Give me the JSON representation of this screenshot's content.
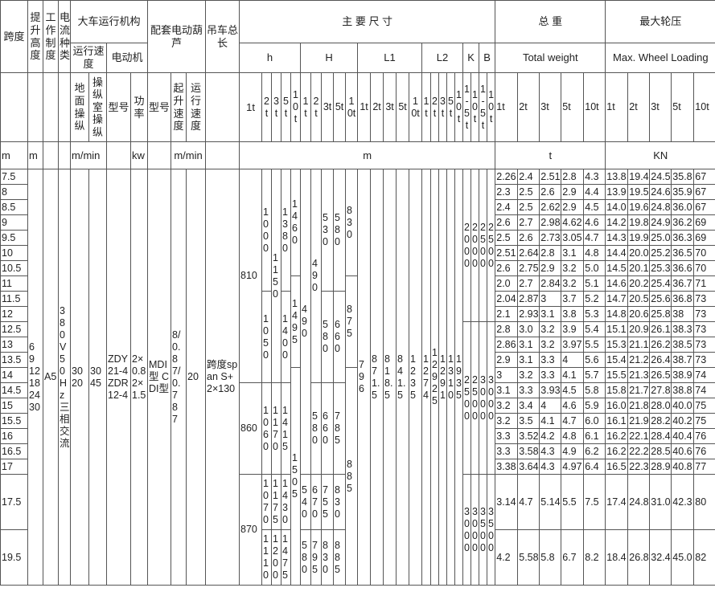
{
  "header": {
    "span": "跨度",
    "lift_height": "提升高度",
    "duty": "工作制度",
    "current": "电流种类",
    "travel_mech": "大车运行机构",
    "travel_speed": "运行速度",
    "motor": "电动机",
    "ground_op": "地面操纵",
    "cab_op": "操纵室操纵",
    "motor_type": "型号",
    "motor_power": "功率",
    "hoist": "配套电动葫芦",
    "hoist_type": "型号",
    "hoist_lift_speed": "起升速度",
    "hoist_travel_speed": "运行速度",
    "total_length": "吊车总长",
    "main_dims": "主 要 尺 寸",
    "total_weight_cn": "总 重",
    "max_load_cn": "最大轮压",
    "dim_groups": [
      "h",
      "H",
      "L1",
      "L2",
      "K",
      "B"
    ],
    "total_weight_en": "Total weight",
    "max_load_en": "Max. Wheel Loading",
    "tonnages": [
      "1t",
      "2t",
      "3t",
      "5t",
      "10t"
    ],
    "kb_tonnages": [
      "1-5t",
      "10t"
    ]
  },
  "units": {
    "span": "m",
    "lift_height": "m",
    "travel_speed": "m/min",
    "power": "kw",
    "hoist_speed": "m/min",
    "dims": "m",
    "weight": "t",
    "load": "KN"
  },
  "common": {
    "lift_heights": "6 9 12 18 24 30",
    "duty": "A5",
    "current": "380V50Hz三相交流",
    "ground_speed": "30 20",
    "cab_speed": "30 45",
    "motor_types": "ZDY21-4 ZDR12-4",
    "motor_power": "2×0.8 2×1.5",
    "hoist_types": "MDI型 CDI型",
    "hoist_lift_speed": "8/0.8 7/0.7 8 7",
    "hoist_travel_speed": "20",
    "total_length": "跨度span S+2×130"
  },
  "dimensions": [
    [
      [
        "810",
        14
      ],
      [
        "860",
        6
      ],
      [
        "870",
        2
      ]
    ],
    [
      [
        "1000",
        8
      ],
      [
        "1050",
        6
      ],
      [
        "1060",
        6
      ],
      [
        "1070",
        1
      ],
      [
        "1110",
        1
      ]
    ],
    [
      [
        "1150",
        14
      ],
      [
        "1170",
        6
      ],
      [
        "1175",
        1
      ],
      [
        "1200",
        1
      ]
    ],
    [
      [
        "1380",
        8
      ],
      [
        "1400",
        6
      ],
      [
        "1415",
        6
      ],
      [
        "1430",
        1
      ],
      [
        "1475",
        1
      ]
    ],
    [
      [
        "1460",
        7
      ],
      [
        "1495",
        6
      ],
      [
        "1505",
        9
      ]
    ],
    [
      [
        "490",
        20
      ],
      [
        "540",
        1
      ],
      [
        "580",
        1
      ]
    ],
    [
      [
        "490",
        14
      ],
      [
        "580",
        6
      ],
      [
        "670",
        1
      ],
      [
        "795",
        1
      ]
    ],
    [
      [
        "530",
        8
      ],
      [
        "580",
        6
      ],
      [
        "660",
        6
      ],
      [
        "755",
        1
      ],
      [
        "830",
        1
      ]
    ],
    [
      [
        "580",
        8
      ],
      [
        "660",
        6
      ],
      [
        "785",
        6
      ],
      [
        "830",
        1
      ],
      [
        "885",
        1
      ]
    ],
    [
      [
        "830",
        7
      ],
      [
        "875",
        6
      ],
      [
        "885",
        9
      ]
    ],
    [
      [
        "796",
        22
      ]
    ],
    [
      [
        "871.5",
        22
      ]
    ],
    [
      [
        "818.5",
        22
      ]
    ],
    [
      [
        "841.5",
        22
      ]
    ],
    [
      [
        "1235",
        22
      ]
    ],
    [
      [
        "1274",
        22
      ]
    ],
    [
      [
        "1292.5",
        22
      ]
    ],
    [
      [
        "1291",
        22
      ]
    ],
    [
      [
        "1310",
        22
      ]
    ],
    [
      [
        "1935",
        22
      ]
    ],
    [
      [
        "2000",
        10
      ],
      [
        "2500",
        10
      ],
      [
        "3000",
        2
      ]
    ],
    [
      [
        "2000",
        10
      ],
      [
        "2500",
        10
      ],
      [
        "3000",
        2
      ]
    ],
    [
      [
        "2500",
        10
      ],
      [
        "3000",
        10
      ],
      [
        "3500",
        2
      ]
    ],
    [
      [
        "2500",
        10
      ],
      [
        "3000",
        10
      ],
      [
        "3500",
        2
      ]
    ]
  ],
  "rows": [
    {
      "span": "7.5",
      "weight": [
        "2.26",
        "2.4",
        "2.51",
        "2.8",
        "4.3"
      ],
      "load": [
        "13.8",
        "19.4",
        "24.5",
        "35.8",
        "67"
      ]
    },
    {
      "span": "8",
      "weight": [
        "2.3",
        "2.5",
        "2.6",
        "2.9",
        "4.4"
      ],
      "load": [
        "13.9",
        "19.5",
        "24.6",
        "35.9",
        "67"
      ]
    },
    {
      "span": "8.5",
      "weight": [
        "2.4",
        "2.5",
        "2.62",
        "2.9",
        "4.5"
      ],
      "load": [
        "14.0",
        "19.6",
        "24.8",
        "36.0",
        "67"
      ]
    },
    {
      "span": "9",
      "weight": [
        "2.6",
        "2.7",
        "2.98",
        "4.62",
        "4.6"
      ],
      "load": [
        "14.2",
        "19.8",
        "24.9",
        "36.2",
        "69"
      ]
    },
    {
      "span": "9.5",
      "weight": [
        "2.5",
        "2.6",
        "2.73",
        "3.05",
        "4.7"
      ],
      "load": [
        "14.3",
        "19.9",
        "25.0",
        "36.3",
        "69"
      ]
    },
    {
      "span": "10",
      "weight": [
        "2.51",
        "2.64",
        "2.8",
        "3.1",
        "4.8"
      ],
      "load": [
        "14.4",
        "20.0",
        "25.2",
        "36.5",
        "70"
      ]
    },
    {
      "span": "10.5",
      "weight": [
        "2.6",
        "2.75",
        "2.9",
        "3.2",
        "5.0"
      ],
      "load": [
        "14.5",
        "20.1",
        "25.3",
        "36.6",
        "70"
      ]
    },
    {
      "span": "11",
      "weight": [
        "2.0",
        "2.7",
        "2.84",
        "3.2",
        "5.1"
      ],
      "load": [
        "14.6",
        "20.2",
        "25.4",
        "36.7",
        "71"
      ]
    },
    {
      "span": "11.5",
      "weight": [
        "2.04",
        "2.87",
        "3",
        "3.7",
        "5.2"
      ],
      "load": [
        "14.7",
        "20.5",
        "25.6",
        "36.8",
        "73"
      ]
    },
    {
      "span": "12",
      "weight": [
        "2.1",
        "2.93",
        "3.1",
        "3.8",
        "5.3"
      ],
      "load": [
        "14.8",
        "20.6",
        "25.8",
        "38",
        "73"
      ]
    },
    {
      "span": "12.5",
      "weight": [
        "2.8",
        "3.0",
        "3.2",
        "3.9",
        "5.4"
      ],
      "load": [
        "15.1",
        "20.9",
        "26.1",
        "38.3",
        "73"
      ]
    },
    {
      "span": "13",
      "weight": [
        "2.86",
        "3.1",
        "3.2",
        "3.97",
        "5.5"
      ],
      "load": [
        "15.3",
        "21.1",
        "26.2",
        "38.5",
        "73"
      ]
    },
    {
      "span": "13.5",
      "weight": [
        "2.9",
        "3.1",
        "3.3",
        "4",
        "5.6"
      ],
      "load": [
        "15.4",
        "21.2",
        "26.4",
        "38.7",
        "73"
      ]
    },
    {
      "span": "14",
      "weight": [
        "3",
        "3.2",
        "3.3",
        "4.1",
        "5.7"
      ],
      "load": [
        "15.5",
        "21.3",
        "26.5",
        "38.9",
        "74"
      ]
    },
    {
      "span": "14.5",
      "weight": [
        "3.1",
        "3.3",
        "3.93",
        "4.5",
        "5.8"
      ],
      "load": [
        "15.8",
        "21.7",
        "27.8",
        "38.8",
        "74"
      ]
    },
    {
      "span": "15",
      "weight": [
        "3.2",
        "3.4",
        "4",
        "4.6",
        "5.9"
      ],
      "load": [
        "16.0",
        "21.8",
        "28.0",
        "40.0",
        "75"
      ]
    },
    {
      "span": "15.5",
      "weight": [
        "3.2",
        "3.5",
        "4.1",
        "4.7",
        "6.0"
      ],
      "load": [
        "16.1",
        "21.9",
        "28.2",
        "40.2",
        "75"
      ]
    },
    {
      "span": "16",
      "weight": [
        "3.3",
        "3.52",
        "4.2",
        "4.8",
        "6.1"
      ],
      "load": [
        "16.2",
        "22.1",
        "28.4",
        "40.4",
        "76"
      ]
    },
    {
      "span": "16.5",
      "weight": [
        "3.3",
        "3.58",
        "4.3",
        "4.9",
        "6.2"
      ],
      "load": [
        "16.2",
        "22.2",
        "28.5",
        "40.6",
        "76"
      ]
    },
    {
      "span": "17",
      "weight": [
        "3.38",
        "3.64",
        "4.3",
        "4.97",
        "6.4"
      ],
      "load": [
        "16.5",
        "22.3",
        "28.9",
        "40.8",
        "77"
      ]
    },
    {
      "span": "17.5",
      "weight": [
        "3.14",
        "4.7",
        "5.14",
        "5.5",
        "7.5"
      ],
      "load": [
        "17.4",
        "24.8",
        "31.0",
        "42.3",
        "80"
      ]
    },
    {
      "span": "19.5",
      "weight": [
        "4.2",
        "5.58",
        "5.8",
        "6.7",
        "8.2"
      ],
      "load": [
        "18.4",
        "26.8",
        "32.4",
        "45.0",
        "82"
      ]
    }
  ]
}
